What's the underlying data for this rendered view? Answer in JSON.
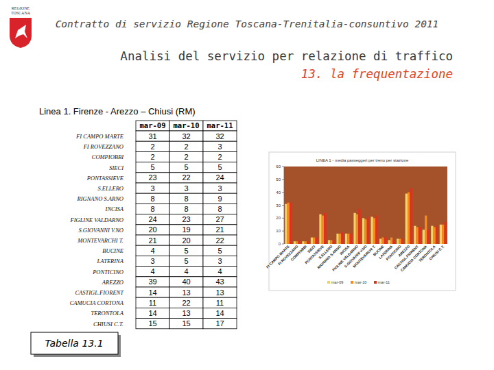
{
  "header": {
    "logo_text": "REGIONE TOSCANA",
    "title": "Contratto di servizio Regione Toscana-Trenitalia-consuntivo 2011",
    "heading": "Analisi del servizio per relazione di traffico",
    "subheading": "13. la frequentazione",
    "line": "Linea 1. Firenze - Arezzo – Chiusi (RM)"
  },
  "table": {
    "columns": [
      "mar-09",
      "mar-10",
      "mar-11"
    ],
    "rows": [
      {
        "label": "FI CAMPO MARTE",
        "values": [
          31,
          32,
          32
        ]
      },
      {
        "label": "FI ROVEZZANO",
        "values": [
          2,
          2,
          3
        ]
      },
      {
        "label": "COMPIOBBI",
        "values": [
          2,
          2,
          2
        ]
      },
      {
        "label": "SIECI",
        "values": [
          5,
          5,
          5
        ]
      },
      {
        "label": "PONTASSIEVE",
        "values": [
          23,
          22,
          24
        ]
      },
      {
        "label": "S.ELLERO",
        "values": [
          3,
          3,
          3
        ]
      },
      {
        "label": "RIGNANO S.ARNO",
        "values": [
          8,
          8,
          9
        ]
      },
      {
        "label": "INCISA",
        "values": [
          8,
          8,
          8
        ]
      },
      {
        "label": "FIGLINE VALDARNO",
        "values": [
          24,
          23,
          27
        ]
      },
      {
        "label": "S.GIOVANNI V.NO",
        "values": [
          20,
          19,
          21
        ]
      },
      {
        "label": "MONTEVARCHI T.",
        "values": [
          21,
          20,
          22
        ]
      },
      {
        "label": "BUCINE",
        "values": [
          4,
          5,
          5
        ]
      },
      {
        "label": "LATERINA",
        "values": [
          3,
          5,
          3
        ]
      },
      {
        "label": "PONTICINO",
        "values": [
          4,
          4,
          4
        ]
      },
      {
        "label": "AREZZO",
        "values": [
          39,
          40,
          43
        ]
      },
      {
        "label": "CASTIGL.FIORENT",
        "values": [
          14,
          13,
          13
        ]
      },
      {
        "label": "CAMUCIA CORTONA",
        "values": [
          11,
          22,
          11
        ]
      },
      {
        "label": "TERONTOLA",
        "values": [
          14,
          13,
          14
        ]
      },
      {
        "label": "CHIUSI C.T.",
        "values": [
          15,
          15,
          17
        ]
      }
    ],
    "caption": "Tabella 13.1"
  },
  "chart_data": {
    "type": "bar",
    "title": "LINEA 1 - media passeggeri per treno per stazione",
    "categories": [
      "FI CAMPO MARTE",
      "FI ROVEZZANO",
      "COMPIOBBI",
      "SIECI",
      "PONTASSIEVE",
      "S.ELLERO",
      "RIGNANO S.ARNO",
      "INCISA",
      "FIGLINE VALDARNO",
      "S.GIOVANNI V.NO",
      "MONTEVARCHI T.",
      "BUCINE",
      "LATERINA",
      "PONTICINO",
      "AREZZO",
      "CASTIGL.FIORENT",
      "CAMUCIA CORTONA",
      "TERONTOLA",
      "CHIUSI C.T."
    ],
    "series": [
      {
        "name": "mar-09",
        "color": "#f2d36b",
        "values": [
          31,
          2,
          2,
          5,
          23,
          3,
          8,
          8,
          24,
          20,
          21,
          4,
          3,
          4,
          39,
          14,
          11,
          14,
          15
        ]
      },
      {
        "name": "mar-10",
        "color": "#f28c1e",
        "values": [
          32,
          2,
          2,
          5,
          22,
          3,
          8,
          8,
          23,
          19,
          20,
          5,
          5,
          4,
          40,
          13,
          22,
          13,
          15
        ]
      },
      {
        "name": "mar-11",
        "color": "#e0301e",
        "values": [
          32,
          3,
          2,
          5,
          24,
          3,
          9,
          8,
          27,
          21,
          22,
          5,
          3,
          4,
          43,
          13,
          11,
          14,
          17
        ]
      }
    ],
    "ylim": [
      0,
      60
    ],
    "yticks": [
      0,
      10,
      20,
      30,
      40,
      50,
      60
    ],
    "grid": false,
    "legend": "bottom"
  }
}
